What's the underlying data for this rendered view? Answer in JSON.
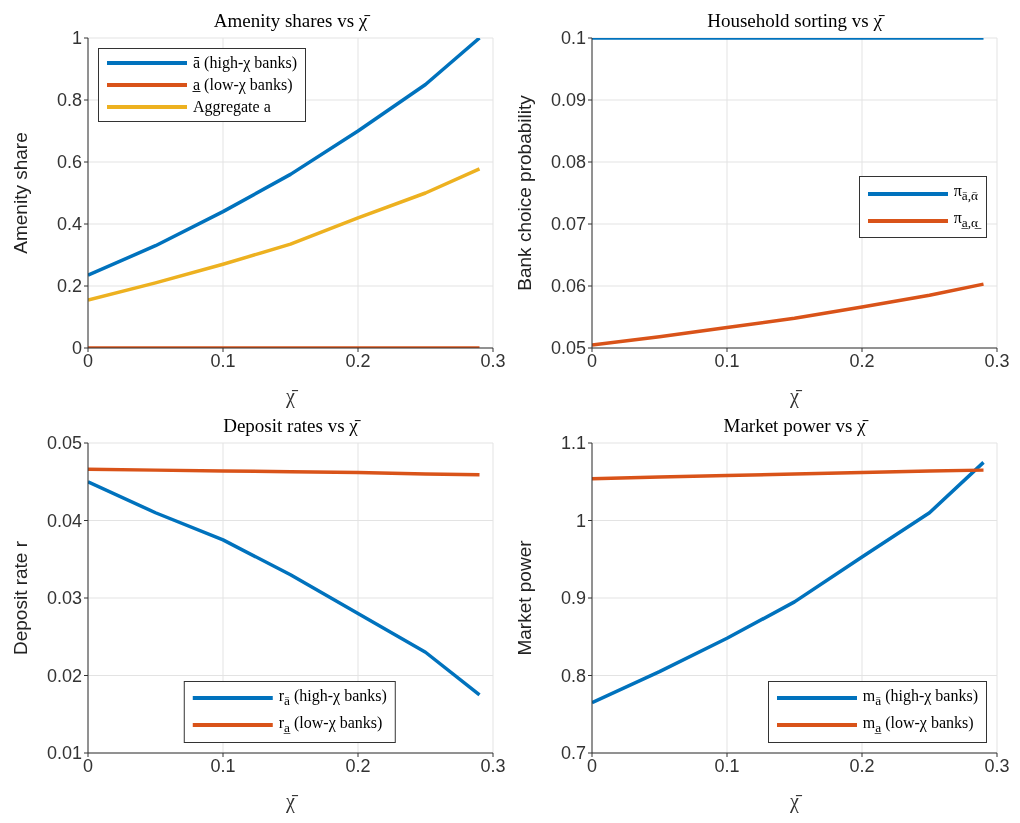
{
  "chart_data": [
    {
      "type": "line",
      "title": "Amenity shares vs χ̄",
      "xlabel": "χ̄",
      "ylabel": "Amenity share",
      "x": [
        0,
        0.05,
        0.1,
        0.15,
        0.2,
        0.25,
        0.29
      ],
      "xlim": [
        0,
        0.3
      ],
      "xticks": [
        0,
        0.1,
        0.2,
        0.3
      ],
      "ylim": [
        0,
        1
      ],
      "yticks": [
        0,
        0.2,
        0.4,
        0.6,
        0.8,
        1
      ],
      "grid": true,
      "legend": "top left",
      "marker": "none",
      "line_style": "solid",
      "series": [
        {
          "name": "ā (high-χ banks)",
          "color": "#0072bd",
          "values": [
            0.235,
            0.33,
            0.44,
            0.56,
            0.7,
            0.85,
            1.0
          ]
        },
        {
          "name": "a̲ (low-χ banks)",
          "color": "#d95319",
          "values": [
            0,
            0,
            0,
            0,
            0,
            0,
            0
          ]
        },
        {
          "name": "Aggregate a",
          "color": "#edb120",
          "values": [
            0.155,
            0.21,
            0.27,
            0.335,
            0.42,
            0.5,
            0.578
          ]
        }
      ]
    },
    {
      "type": "line",
      "title": "Household sorting vs χ̄",
      "xlabel": "χ̄",
      "ylabel": "Bank choice probability",
      "x": [
        0,
        0.05,
        0.1,
        0.15,
        0.2,
        0.25,
        0.29
      ],
      "xlim": [
        0,
        0.3
      ],
      "xticks": [
        0,
        0.1,
        0.2,
        0.3
      ],
      "ylim": [
        0.05,
        0.1
      ],
      "yticks": [
        0.05,
        0.06,
        0.07,
        0.08,
        0.09,
        0.1
      ],
      "grid": true,
      "legend": "right",
      "marker": "none",
      "line_style": "solid",
      "series": [
        {
          "name": "π$_{ā,ᾱ}$",
          "color": "#0072bd",
          "values": [
            0.1,
            0.1,
            0.1,
            0.1,
            0.1,
            0.1,
            0.1
          ]
        },
        {
          "name": "π$_{a̲,α̲}$",
          "color": "#d95319",
          "values": [
            0.0505,
            0.0518,
            0.0533,
            0.0548,
            0.0566,
            0.0585,
            0.0603
          ]
        }
      ]
    },
    {
      "type": "line",
      "title": "Deposit rates vs χ̄",
      "xlabel": "χ̄",
      "ylabel": "Deposit rate r",
      "x": [
        0,
        0.05,
        0.1,
        0.15,
        0.2,
        0.25,
        0.29
      ],
      "xlim": [
        0,
        0.3
      ],
      "xticks": [
        0,
        0.1,
        0.2,
        0.3
      ],
      "ylim": [
        0.01,
        0.05
      ],
      "yticks": [
        0.01,
        0.02,
        0.03,
        0.04,
        0.05
      ],
      "grid": true,
      "legend": "bottom",
      "marker": "none",
      "line_style": "solid",
      "series": [
        {
          "name": "r$_{ā}$ (high-χ banks)",
          "color": "#0072bd",
          "values": [
            0.045,
            0.041,
            0.0375,
            0.033,
            0.028,
            0.023,
            0.0175
          ]
        },
        {
          "name": "r$_{a̲}$ (low-χ banks)",
          "color": "#d95319",
          "values": [
            0.0466,
            0.0465,
            0.0464,
            0.0463,
            0.0462,
            0.046,
            0.0459
          ]
        }
      ]
    },
    {
      "type": "line",
      "title": "Market power vs χ̄",
      "xlabel": "χ̄",
      "ylabel": "Market power",
      "x": [
        0,
        0.05,
        0.1,
        0.15,
        0.2,
        0.25,
        0.29
      ],
      "xlim": [
        0,
        0.3
      ],
      "xticks": [
        0,
        0.1,
        0.2,
        0.3
      ],
      "ylim": [
        0.7,
        1.1
      ],
      "yticks": [
        0.7,
        0.8,
        0.9,
        1,
        1.1
      ],
      "grid": true,
      "legend": "bottom right",
      "marker": "none",
      "line_style": "solid",
      "series": [
        {
          "name": "m$_{ā}$ (high-χ banks)",
          "color": "#0072bd",
          "values": [
            0.765,
            0.805,
            0.848,
            0.895,
            0.953,
            1.01,
            1.075
          ]
        },
        {
          "name": "m$_{a̲}$ (low-χ banks)",
          "color": "#d95319",
          "values": [
            1.054,
            1.056,
            1.058,
            1.06,
            1.062,
            1.064,
            1.065
          ]
        }
      ]
    }
  ]
}
